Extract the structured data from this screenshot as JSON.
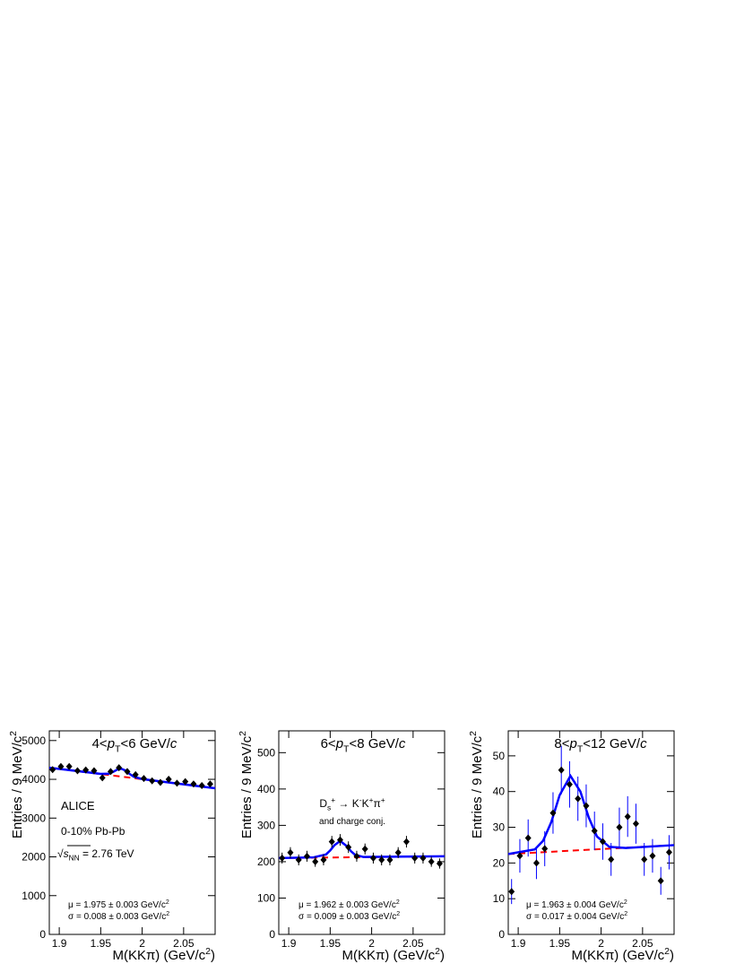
{
  "chart_data": [
    {
      "type": "errorbar",
      "title": [
        {
          "text": "4<"
        },
        {
          "text": "p",
          "style": "italic"
        },
        {
          "text": "T",
          "style": "sub"
        },
        {
          "text": "<6 GeV/"
        },
        {
          "text": "c",
          "style": "italic"
        }
      ],
      "x_label": [
        {
          "text": "M(KKπ) (GeV/"
        },
        {
          "text": "c"
        },
        {
          "text": "2",
          "style": "sup"
        },
        {
          "text": ")"
        }
      ],
      "y_label": [
        {
          "text": "Entries / 9 MeV/"
        },
        {
          "text": "c"
        },
        {
          "text": "2",
          "style": "sup"
        }
      ],
      "annotations": [
        {
          "parts": [
            {
              "text": "ALICE"
            }
          ]
        },
        {
          "parts": [
            {
              "text": "0-10% Pb-Pb"
            }
          ]
        },
        {
          "parts": [
            {
              "text": "√"
            },
            {
              "text": "s",
              "style": "italic"
            },
            {
              "text": "NN",
              "style": "sub"
            },
            {
              "text": " = 2.76 TeV"
            }
          ]
        },
        {
          "parts": [
            {
              "text": "μ = 1.975 ± 0.003 GeV/"
            },
            {
              "text": "c"
            },
            {
              "text": "2",
              "style": "sup"
            }
          ]
        },
        {
          "parts": [
            {
              "text": "σ = 0.008 ± 0.003 GeV/"
            },
            {
              "text": "c"
            },
            {
              "text": "2",
              "style": "sup"
            }
          ]
        }
      ],
      "xlim": [
        1.888,
        2.088
      ],
      "xticks": [
        1.9,
        1.95,
        2,
        2.05
      ],
      "ylim": [
        0,
        5250
      ],
      "yticks": [
        0,
        1000,
        2000,
        3000,
        4000,
        5000
      ],
      "series": [
        {
          "kind": "background",
          "color": "#ff0000",
          "dashed": true,
          "x": [
            1.888,
            2.088
          ],
          "values": [
            4300,
            3770
          ]
        },
        {
          "kind": "fit",
          "color": "#0000ff",
          "x": [
            1.888,
            1.93,
            1.95,
            1.96,
            1.965,
            1.97,
            1.975,
            1.98,
            1.985,
            1.99,
            2.0,
            2.04,
            2.088
          ],
          "values": [
            4300,
            4193,
            4141,
            4146,
            4191,
            4251,
            4272,
            4224,
            4137,
            4066,
            4007,
            3898,
            3770
          ]
        },
        {
          "kind": "points",
          "color": "#000000",
          "x": [
            1.892,
            1.902,
            1.912,
            1.922,
            1.932,
            1.942,
            1.952,
            1.962,
            1.972,
            1.982,
            1.992,
            2.002,
            2.012,
            2.022,
            2.032,
            2.042,
            2.052,
            2.062,
            2.072,
            2.082
          ],
          "values": [
            4250,
            4330,
            4330,
            4220,
            4240,
            4220,
            4040,
            4200,
            4300,
            4200,
            4120,
            4020,
            3960,
            3920,
            4000,
            3900,
            3940,
            3880,
            3840,
            3880
          ],
          "errors": [
            65,
            66,
            66,
            65,
            65,
            65,
            64,
            65,
            66,
            65,
            64,
            63,
            63,
            63,
            63,
            62,
            63,
            62,
            62,
            62
          ]
        }
      ]
    },
    {
      "type": "errorbar",
      "title": [
        {
          "text": "6<"
        },
        {
          "text": "p",
          "style": "italic"
        },
        {
          "text": "T",
          "style": "sub"
        },
        {
          "text": "<8 GeV/"
        },
        {
          "text": "c",
          "style": "italic"
        }
      ],
      "x_label": [
        {
          "text": "M(KKπ) (GeV/"
        },
        {
          "text": "c"
        },
        {
          "text": "2",
          "style": "sup"
        },
        {
          "text": ")"
        }
      ],
      "y_label": [
        {
          "text": "Entries / 9 MeV/"
        },
        {
          "text": "c"
        },
        {
          "text": "2",
          "style": "sup"
        }
      ],
      "annotations": [
        {
          "parts": [
            {
              "text": "D"
            },
            {
              "text": "s",
              "style": "sub"
            },
            {
              "text": "+",
              "style": "sup"
            },
            {
              "text": " → K"
            },
            {
              "text": "-",
              "style": "sup"
            },
            {
              "text": "K"
            },
            {
              "text": "+",
              "style": "sup"
            },
            {
              "text": "π"
            },
            {
              "text": "+",
              "style": "sup"
            }
          ]
        },
        {
          "parts": [
            {
              "text": "and charge conj."
            }
          ]
        },
        {
          "parts": [
            {
              "text": "μ = 1.962 ± 0.003 GeV/"
            },
            {
              "text": "c"
            },
            {
              "text": "2",
              "style": "sup"
            }
          ]
        },
        {
          "parts": [
            {
              "text": "σ = 0.009 ± 0.003 GeV/"
            },
            {
              "text": "c"
            },
            {
              "text": "2",
              "style": "sup"
            }
          ]
        }
      ],
      "xlim": [
        1.888,
        2.088
      ],
      "xticks": [
        1.9,
        1.95,
        2,
        2.05
      ],
      "ylim": [
        0,
        560
      ],
      "yticks": [
        0,
        100,
        200,
        300,
        400,
        500
      ],
      "series": [
        {
          "kind": "background",
          "color": "#ff0000",
          "dashed": true,
          "x": [
            1.888,
            2.088
          ],
          "values": [
            210,
            215
          ]
        },
        {
          "kind": "fit",
          "color": "#0000ff",
          "x": [
            1.888,
            1.93,
            1.945,
            1.95,
            1.955,
            1.962,
            1.97,
            1.975,
            1.98,
            1.99,
            2.088
          ],
          "values": [
            210,
            212,
            220,
            231,
            245,
            257,
            243,
            229,
            219,
            213,
            215
          ]
        },
        {
          "kind": "points",
          "color": "#000000",
          "x": [
            1.892,
            1.902,
            1.912,
            1.922,
            1.932,
            1.942,
            1.952,
            1.962,
            1.972,
            1.982,
            1.992,
            2.002,
            2.012,
            2.022,
            2.032,
            2.042,
            2.052,
            2.062,
            2.072,
            2.082
          ],
          "values": [
            210,
            225,
            205,
            215,
            200,
            205,
            255,
            260,
            240,
            215,
            235,
            210,
            205,
            205,
            225,
            255,
            210,
            210,
            200,
            195
          ],
          "errors": [
            15,
            15,
            15,
            15,
            14,
            15,
            16,
            16,
            16,
            15,
            15,
            15,
            15,
            15,
            15,
            16,
            15,
            15,
            14,
            14
          ]
        }
      ]
    },
    {
      "type": "errorbar",
      "title": [
        {
          "text": "8<"
        },
        {
          "text": "p",
          "style": "italic"
        },
        {
          "text": "T",
          "style": "sub"
        },
        {
          "text": "<12 GeV/"
        },
        {
          "text": "c",
          "style": "italic"
        }
      ],
      "x_label": [
        {
          "text": "M(KKπ) (GeV/"
        },
        {
          "text": "c"
        },
        {
          "text": "2",
          "style": "sup"
        },
        {
          "text": ")"
        }
      ],
      "y_label": [
        {
          "text": "Entries / 9 MeV/"
        },
        {
          "text": "c"
        },
        {
          "text": "2",
          "style": "sup"
        }
      ],
      "annotations": [
        {
          "parts": [
            {
              "text": "μ = 1.963 ± 0.004 GeV/"
            },
            {
              "text": "c"
            },
            {
              "text": "2",
              "style": "sup"
            }
          ]
        },
        {
          "parts": [
            {
              "text": "σ = 0.017 ± 0.004 GeV/"
            },
            {
              "text": "c"
            },
            {
              "text": "2",
              "style": "sup"
            }
          ]
        }
      ],
      "xlim": [
        1.888,
        2.088
      ],
      "xticks": [
        1.9,
        1.95,
        2,
        2.05
      ],
      "ylim": [
        0,
        57
      ],
      "yticks": [
        0,
        10,
        20,
        30,
        40,
        50
      ],
      "series": [
        {
          "kind": "background",
          "color": "#ff0000",
          "dashed": true,
          "x": [
            1.888,
            2.088
          ],
          "values": [
            22.5,
            25
          ]
        },
        {
          "kind": "fit",
          "color": "#0000ff",
          "x": [
            1.888,
            1.92,
            1.93,
            1.94,
            1.95,
            1.963,
            1.975,
            1.985,
            1.995,
            2.01,
            2.03,
            2.088
          ],
          "values": [
            22.5,
            23.8,
            26.2,
            31.5,
            39,
            44.4,
            40,
            32.8,
            27.4,
            24.5,
            24.2,
            25
          ]
        },
        {
          "kind": "points",
          "color": "#000000",
          "x": [
            1.892,
            1.902,
            1.912,
            1.922,
            1.932,
            1.942,
            1.952,
            1.962,
            1.972,
            1.982,
            1.992,
            2.002,
            2.012,
            2.022,
            2.032,
            2.042,
            2.052,
            2.062,
            2.072,
            2.082
          ],
          "values": [
            12,
            22,
            27,
            20,
            24,
            34,
            46,
            42,
            38,
            36,
            29,
            26,
            21,
            30,
            33,
            31,
            21,
            22,
            15,
            23
          ],
          "errors": [
            3.5,
            4.7,
            5.2,
            4.5,
            4.9,
            5.8,
            6.8,
            6.5,
            6.2,
            6,
            5.4,
            5.1,
            4.6,
            5.5,
            5.7,
            5.6,
            4.6,
            4.7,
            3.9,
            4.8
          ]
        }
      ]
    }
  ]
}
